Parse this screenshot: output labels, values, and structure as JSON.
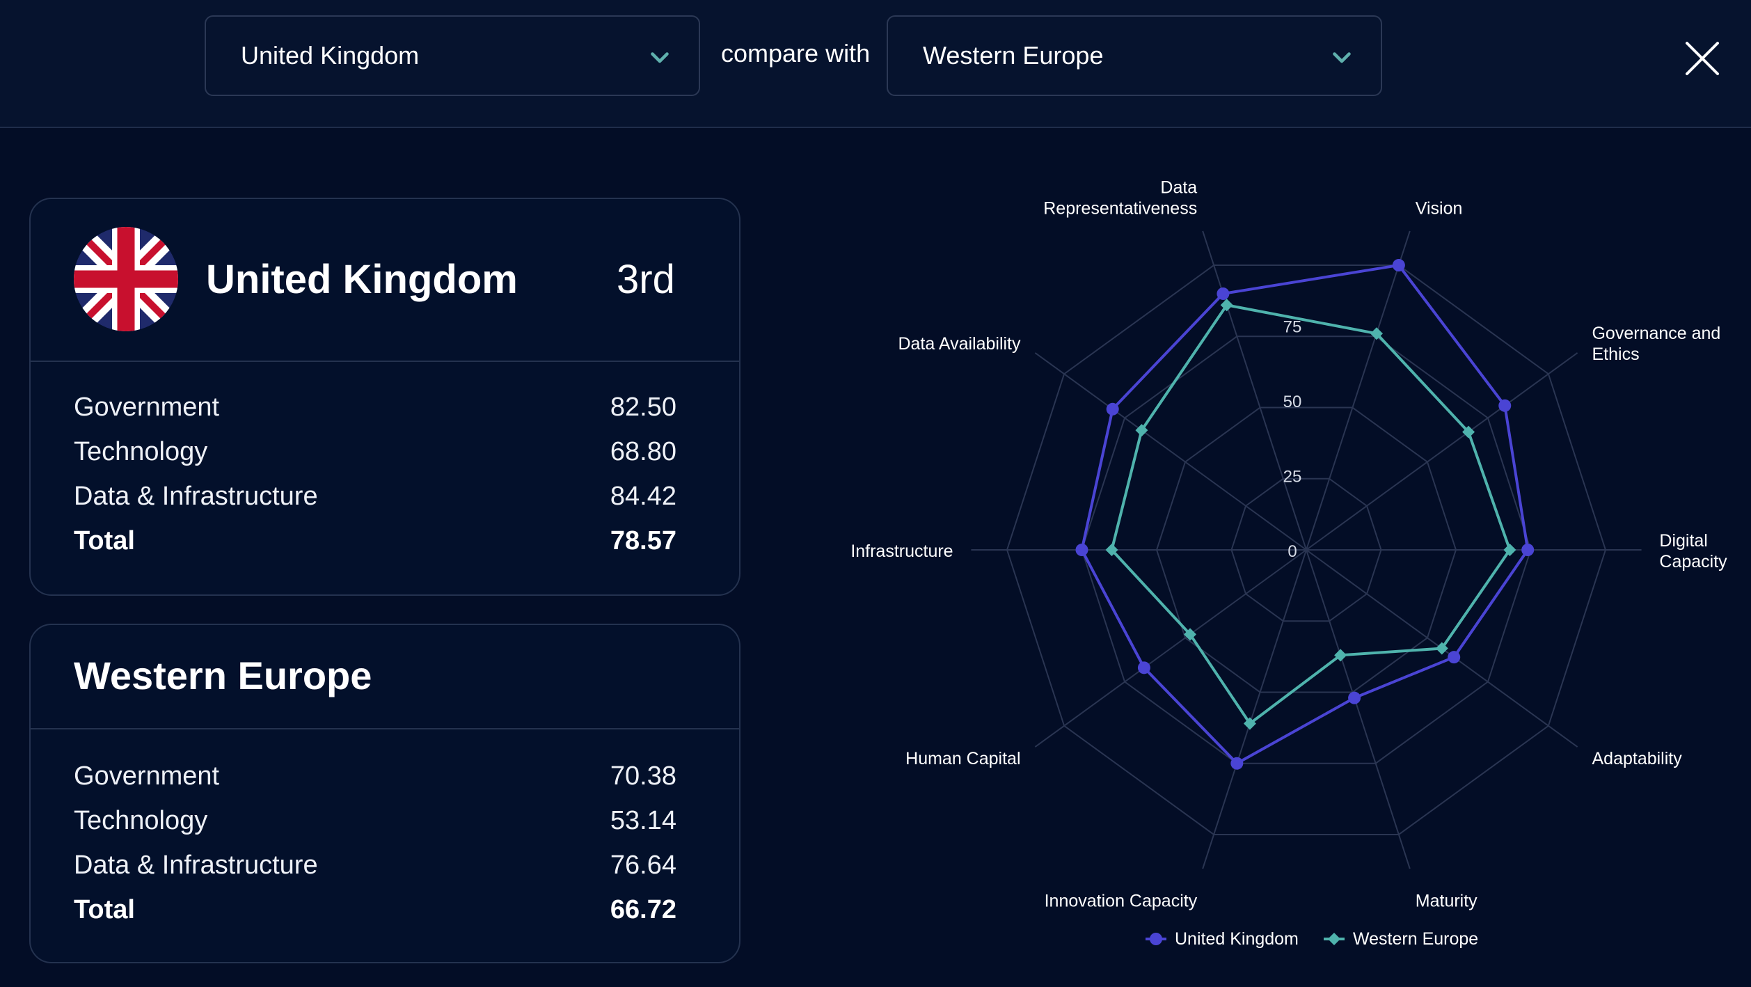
{
  "header": {
    "primary_select": "United Kingdom",
    "compare_label": "compare with",
    "secondary_select": "Western Europe"
  },
  "cards": [
    {
      "title": "United Kingdom",
      "rank": "3rd",
      "rows": [
        {
          "label": "Government",
          "value": "82.50"
        },
        {
          "label": "Technology",
          "value": "68.80"
        },
        {
          "label": "Data & Infrastructure",
          "value": "84.42"
        }
      ],
      "total": {
        "label": "Total",
        "value": "78.57"
      }
    },
    {
      "title": "Western Europe",
      "rows": [
        {
          "label": "Government",
          "value": "70.38"
        },
        {
          "label": "Technology",
          "value": "53.14"
        },
        {
          "label": "Data & Infrastructure",
          "value": "76.64"
        }
      ],
      "total": {
        "label": "Total",
        "value": "66.72"
      }
    }
  ],
  "chart_data": {
    "type": "radar",
    "categories": [
      "Vision",
      "Governance and Ethics",
      "Digital Capacity",
      "Adaptability",
      "Maturity",
      "Innovation Capacity",
      "Human Capital",
      "Infrastructure",
      "Data Availability",
      "Data Representativeness"
    ],
    "radial_ticks": [
      0,
      25,
      50,
      75
    ],
    "rmax": 100,
    "series": [
      {
        "name": "United Kingdom",
        "color": "#4a44d4",
        "marker": "circle",
        "values": [
          100,
          82,
          74,
          61,
          52,
          75,
          67,
          75,
          80,
          90
        ]
      },
      {
        "name": "Western Europe",
        "color": "#4fb3ad",
        "marker": "diamond",
        "values": [
          76,
          67,
          68,
          56,
          37,
          61,
          48,
          65,
          68,
          86
        ]
      }
    ],
    "legend_position": "bottom"
  },
  "colors": {
    "background": "#030d26",
    "uk_series": "#4a44d4",
    "we_series": "#4fb3ad",
    "chevron": "#5fb0ad"
  }
}
